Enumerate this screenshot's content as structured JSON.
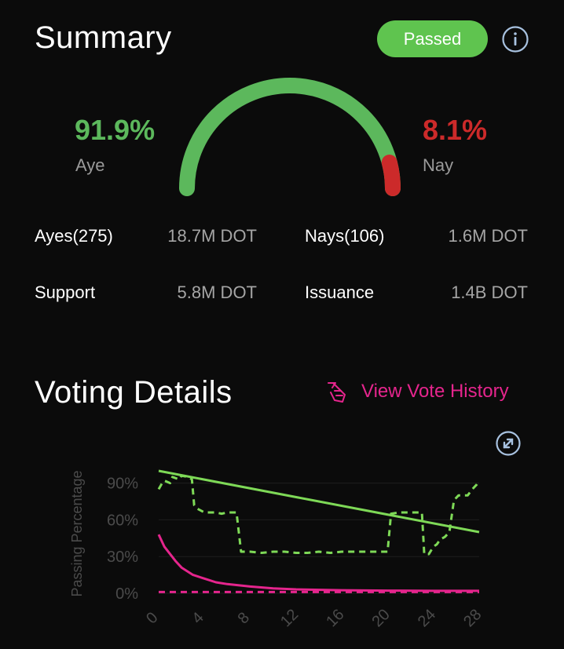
{
  "summary": {
    "title": "Summary",
    "status_badge": "Passed",
    "aye_percent": "91.9%",
    "aye_label": "Aye",
    "nay_percent": "8.1%",
    "nay_label": "Nay",
    "aye_fraction": 0.919,
    "stats": {
      "ayes_label": "Ayes(275)",
      "ayes_value": "18.7M DOT",
      "nays_label": "Nays(106)",
      "nays_value": "1.6M DOT",
      "support_label": "Support",
      "support_value": "5.8M DOT",
      "issuance_label": "Issuance",
      "issuance_value": "1.4B DOT"
    }
  },
  "voting": {
    "title": "Voting Details",
    "history_link": "View Vote History"
  },
  "colors": {
    "aye": "#5cb85c",
    "nay": "#cc2a2a",
    "accent": "#e5258d",
    "badge": "#5fc44f",
    "line_green": "#7ed957"
  },
  "icons": {
    "info": "info-icon",
    "history": "history-icon",
    "expand": "expand-icon"
  },
  "chart_data": {
    "type": "line",
    "ylabel": "Passing Percentage",
    "xlim": [
      0,
      28
    ],
    "ylim": [
      0,
      100
    ],
    "x_ticks": [
      0,
      4,
      8,
      12,
      16,
      20,
      24,
      28
    ],
    "y_ticks": [
      0,
      30,
      60,
      90
    ],
    "y_tick_labels": [
      "0%",
      "30%",
      "60%",
      "90%"
    ],
    "grid": true,
    "series": [
      {
        "style": "solid",
        "color": "#7ed957",
        "x": [
          0,
          28
        ],
        "y": [
          100,
          50
        ]
      },
      {
        "style": "dashed",
        "color": "#7ed957",
        "x": [
          0,
          0.3,
          0.5,
          1,
          1.2,
          1.8,
          2,
          2.6,
          2.9,
          3.1,
          3.4,
          4,
          4.5,
          5,
          5.5,
          6,
          6.5,
          6.8,
          7.2,
          7.6,
          8,
          9,
          10,
          11,
          12,
          13,
          14,
          15,
          16,
          17,
          18,
          19,
          19.5,
          20,
          20.3,
          21,
          22,
          22.5,
          23,
          23.2,
          23.6,
          24,
          24.3,
          24.6,
          25,
          25.4,
          25.8,
          26.2,
          26.6,
          27,
          27.4,
          27.8,
          28
        ],
        "y": [
          85,
          90,
          92,
          90,
          95,
          93,
          96,
          95,
          93,
          72,
          69,
          66,
          66,
          66,
          65,
          66,
          66,
          66,
          34,
          34,
          34,
          33,
          34,
          34,
          33,
          33,
          34,
          33,
          34,
          34,
          34,
          34,
          34,
          34,
          65,
          66,
          66,
          66,
          66,
          32,
          32,
          38,
          40,
          44,
          46,
          50,
          76,
          80,
          80,
          80,
          85,
          89,
          92
        ]
      },
      {
        "style": "solid",
        "color": "#e5258d",
        "x": [
          0,
          0.5,
          1,
          1.5,
          2,
          3,
          4,
          5,
          6,
          8,
          10,
          12,
          16,
          20,
          24,
          28
        ],
        "y": [
          48,
          38,
          32,
          26,
          21,
          15,
          12,
          9,
          7.5,
          5.5,
          4,
          3.2,
          2.5,
          2.2,
          2,
          2
        ]
      },
      {
        "style": "dashed",
        "color": "#e5258d",
        "x": [
          0,
          28
        ],
        "y": [
          1,
          1
        ]
      }
    ]
  }
}
